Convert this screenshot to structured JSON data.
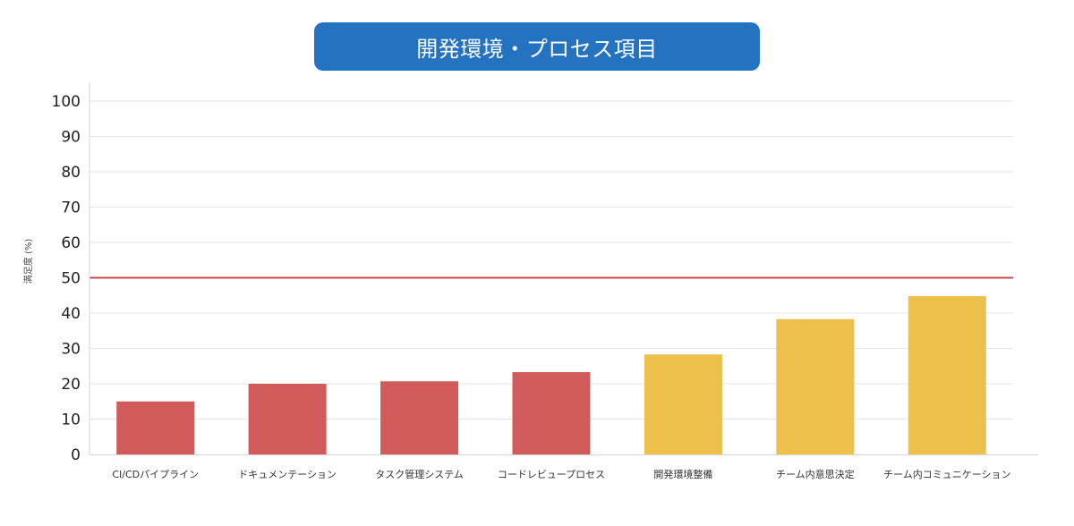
{
  "chart_data": {
    "type": "bar",
    "title": "開発環境・プロセス項目",
    "xlabel": "",
    "ylabel": "満足度 (%)",
    "ylim": [
      0,
      100
    ],
    "yticks": [
      0,
      10,
      20,
      30,
      40,
      50,
      60,
      70,
      80,
      90,
      100
    ],
    "grid": true,
    "categories": [
      "CI/CDパイプライン",
      "ドキュメンテーション",
      "タスク管理システム",
      "コードレビュープロセス",
      "開発環境整備",
      "チーム内意思決定",
      "チーム内コミュニケーション"
    ],
    "values": [
      15,
      20,
      20.7,
      23.3,
      28.3,
      38.3,
      44.8
    ],
    "bar_colors": [
      "#d15b5b",
      "#d15b5b",
      "#d15b5b",
      "#d15b5b",
      "#ecc04b",
      "#ecc04b",
      "#ecc04b"
    ],
    "reference_line": {
      "value": 50,
      "color": "#c9484a"
    }
  }
}
